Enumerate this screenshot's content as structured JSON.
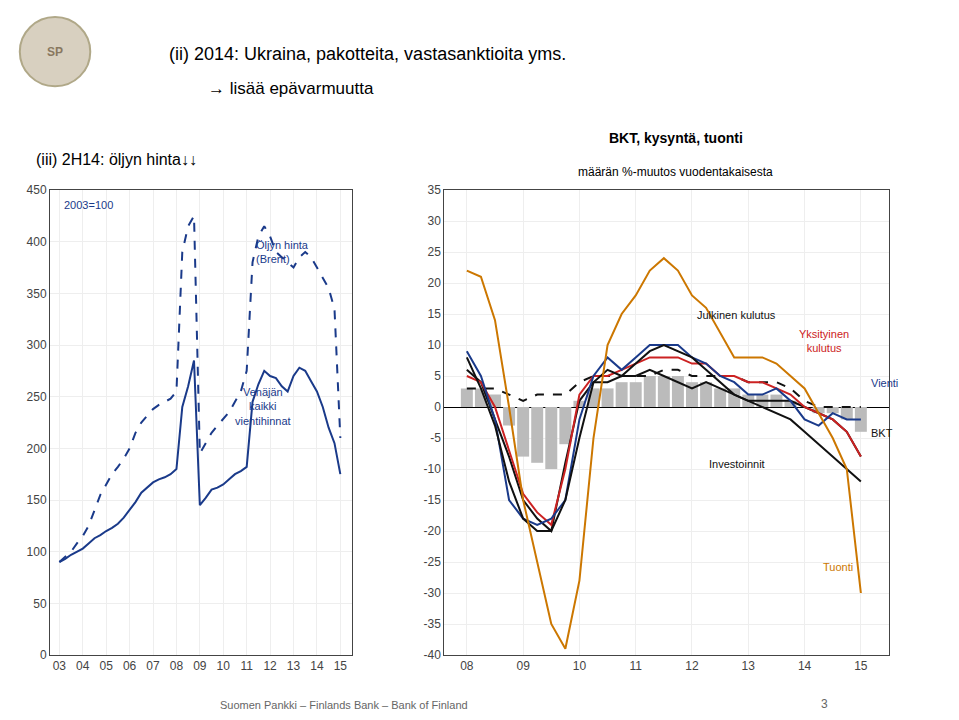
{
  "title": "(ii) 2014: Ukraina, pakotteita, vastasanktioita yms.",
  "subtitle": "→ lisää epävarmuutta",
  "annotations": [
    "Suomen Pankki – Finlands Bank – Bank of Finland",
    "3",
    "SP"
  ],
  "chart_data": [
    {
      "type": "line",
      "title": "(iii) 2H14: öljyn hinta↓↓",
      "annotations": [
        "2003=100"
      ],
      "x": [
        2003.0,
        2003.25,
        2003.5,
        2003.75,
        2004.0,
        2004.25,
        2004.5,
        2004.75,
        2005.0,
        2005.25,
        2005.5,
        2005.75,
        2006.0,
        2006.25,
        2006.5,
        2006.75,
        2007.0,
        2007.25,
        2007.5,
        2007.75,
        2008.0,
        2008.25,
        2008.5,
        2008.75,
        2009.0,
        2009.25,
        2009.5,
        2009.75,
        2010.0,
        2010.25,
        2010.5,
        2010.75,
        2011.0,
        2011.25,
        2011.5,
        2011.75,
        2012.0,
        2012.25,
        2012.5,
        2012.75,
        2013.0,
        2013.25,
        2013.5,
        2013.75,
        2014.0,
        2014.25,
        2014.5,
        2014.75,
        2015.0
      ],
      "series": [
        {
          "name": "Venäjän\nkaikki\nvientihinnat",
          "color": "#1a3a8a",
          "line_style": "solid",
          "values": [
            90,
            93,
            97,
            100,
            103,
            108,
            113,
            116,
            120,
            123,
            127,
            133,
            140,
            148,
            157,
            162,
            167,
            170,
            172,
            175,
            180,
            240,
            260,
            285,
            145,
            152,
            160,
            162,
            165,
            170,
            175,
            178,
            182,
            245,
            262,
            275,
            270,
            268,
            260,
            255,
            270,
            278,
            275,
            265,
            255,
            240,
            220,
            205,
            175
          ]
        },
        {
          "name": "Öljyn hinta\n(Brent)",
          "color": "#1a3a8a",
          "line_style": "dashed",
          "values": [
            90,
            95,
            100,
            108,
            115,
            125,
            140,
            155,
            165,
            175,
            182,
            190,
            200,
            215,
            225,
            232,
            238,
            242,
            245,
            248,
            255,
            390,
            415,
            425,
            195,
            205,
            215,
            222,
            228,
            235,
            245,
            255,
            275,
            380,
            405,
            415,
            405,
            390,
            385,
            380,
            375,
            385,
            390,
            385,
            375,
            365,
            355,
            335,
            210
          ]
        }
      ],
      "xlim": [
        2002.6,
        2015.5
      ],
      "xticks": [
        {
          "value": 2003,
          "label": "03"
        },
        {
          "value": 2004,
          "label": "04"
        },
        {
          "value": 2005,
          "label": "05"
        },
        {
          "value": 2006,
          "label": "06"
        },
        {
          "value": 2007,
          "label": "07"
        },
        {
          "value": 2008,
          "label": "08"
        },
        {
          "value": 2009,
          "label": "09"
        },
        {
          "value": 2010,
          "label": "10"
        },
        {
          "value": 2011,
          "label": "11"
        },
        {
          "value": 2012,
          "label": "12"
        },
        {
          "value": 2013,
          "label": "13"
        },
        {
          "value": 2014,
          "label": "14"
        },
        {
          "value": 2015,
          "label": "15"
        }
      ],
      "ylim": [
        0,
        450
      ],
      "yticks": [
        0,
        50,
        100,
        150,
        200,
        250,
        300,
        350,
        400,
        450
      ],
      "grid": true
    },
    {
      "type": "line",
      "title": "BKT, kysyntä, tuonti",
      "subtitle": "määrän %-muutos vuodentakaisesta",
      "x": [
        2008.0,
        2008.25,
        2008.5,
        2008.75,
        2009.0,
        2009.25,
        2009.5,
        2009.75,
        2010.0,
        2010.25,
        2010.5,
        2010.75,
        2011.0,
        2011.25,
        2011.5,
        2011.75,
        2012.0,
        2012.25,
        2012.5,
        2012.75,
        2013.0,
        2013.25,
        2013.5,
        2013.75,
        2014.0,
        2014.25,
        2014.5,
        2014.75,
        2015.0
      ],
      "series": [
        {
          "type": "bar",
          "color": "#bbbbbb",
          "values": [
            3,
            3,
            2,
            -3,
            -8,
            -9,
            -10,
            -6,
            1,
            3,
            3,
            4,
            4,
            5,
            5,
            5,
            4,
            4,
            3,
            3,
            2,
            2,
            2,
            1,
            0,
            -1,
            -1,
            -2,
            -4
          ]
        },
        {
          "name": "BKT",
          "color": "#111111",
          "line_style": "solid",
          "values": [
            6,
            4,
            -2,
            -8,
            -15,
            -18,
            -20,
            -9,
            1,
            4,
            4,
            5,
            5,
            6,
            5,
            4,
            3,
            4,
            3,
            2,
            1,
            1,
            1,
            1,
            0,
            -1,
            -2,
            -4,
            -8
          ]
        },
        {
          "name": "Julkinen kulutus",
          "color": "#111111",
          "line_style": "dashed",
          "values": [
            3,
            3,
            3,
            2,
            1,
            2,
            2,
            2,
            4,
            5,
            5,
            5,
            5,
            5,
            6,
            6,
            5,
            5,
            5,
            5,
            4,
            4,
            4,
            3,
            1,
            0,
            0,
            0,
            0
          ]
        },
        {
          "name": "Yksityinen\nkulutus",
          "color": "#cc2222",
          "line_style": "solid",
          "values": [
            5,
            4,
            0,
            -7,
            -14,
            -17,
            -19,
            -10,
            2,
            5,
            5,
            6,
            7,
            8,
            8,
            8,
            7,
            7,
            5,
            5,
            4,
            4,
            3,
            2,
            0,
            -1,
            -2,
            -4,
            -8
          ]
        },
        {
          "name": "Vienti",
          "color": "#1a3a8a",
          "line_style": "solid",
          "values": [
            9,
            5,
            -2,
            -15,
            -18,
            -19,
            -18,
            -15,
            -2,
            5,
            8,
            6,
            8,
            10,
            10,
            10,
            8,
            7,
            5,
            4,
            2,
            2,
            3,
            1,
            -2,
            -3,
            -1,
            -2,
            -2
          ]
        },
        {
          "name": "Investoinnit",
          "color": "#111111",
          "line_style": "solid",
          "values": [
            8,
            3,
            -3,
            -12,
            -18,
            -20,
            -20,
            -15,
            -5,
            4,
            6,
            5,
            7,
            9,
            10,
            9,
            8,
            6,
            4,
            2,
            1,
            0,
            -1,
            -2,
            -4,
            -6,
            -8,
            -10,
            -12
          ]
        },
        {
          "name": "Tuonti",
          "color": "#cc7700",
          "line_style": "solid",
          "values": [
            22,
            21,
            14,
            0,
            -15,
            -25,
            -35,
            -39,
            -28,
            -5,
            10,
            15,
            18,
            22,
            24,
            22,
            18,
            16,
            12,
            8,
            8,
            8,
            7,
            5,
            3,
            -1,
            -5,
            -10,
            -30
          ]
        }
      ],
      "xlim": [
        2007.6,
        2015.5
      ],
      "xticks": [
        {
          "value": 2008,
          "label": "08"
        },
        {
          "value": 2009,
          "label": "09"
        },
        {
          "value": 2010,
          "label": "10"
        },
        {
          "value": 2011,
          "label": "11"
        },
        {
          "value": 2012,
          "label": "12"
        },
        {
          "value": 2013,
          "label": "13"
        },
        {
          "value": 2014,
          "label": "14"
        },
        {
          "value": 2015,
          "label": "15"
        }
      ],
      "ylim": [
        -40,
        35
      ],
      "yticks": [
        -40,
        -35,
        -30,
        -25,
        -20,
        -15,
        -10,
        -5,
        0,
        5,
        10,
        15,
        20,
        25,
        30,
        35
      ],
      "grid": true
    }
  ]
}
